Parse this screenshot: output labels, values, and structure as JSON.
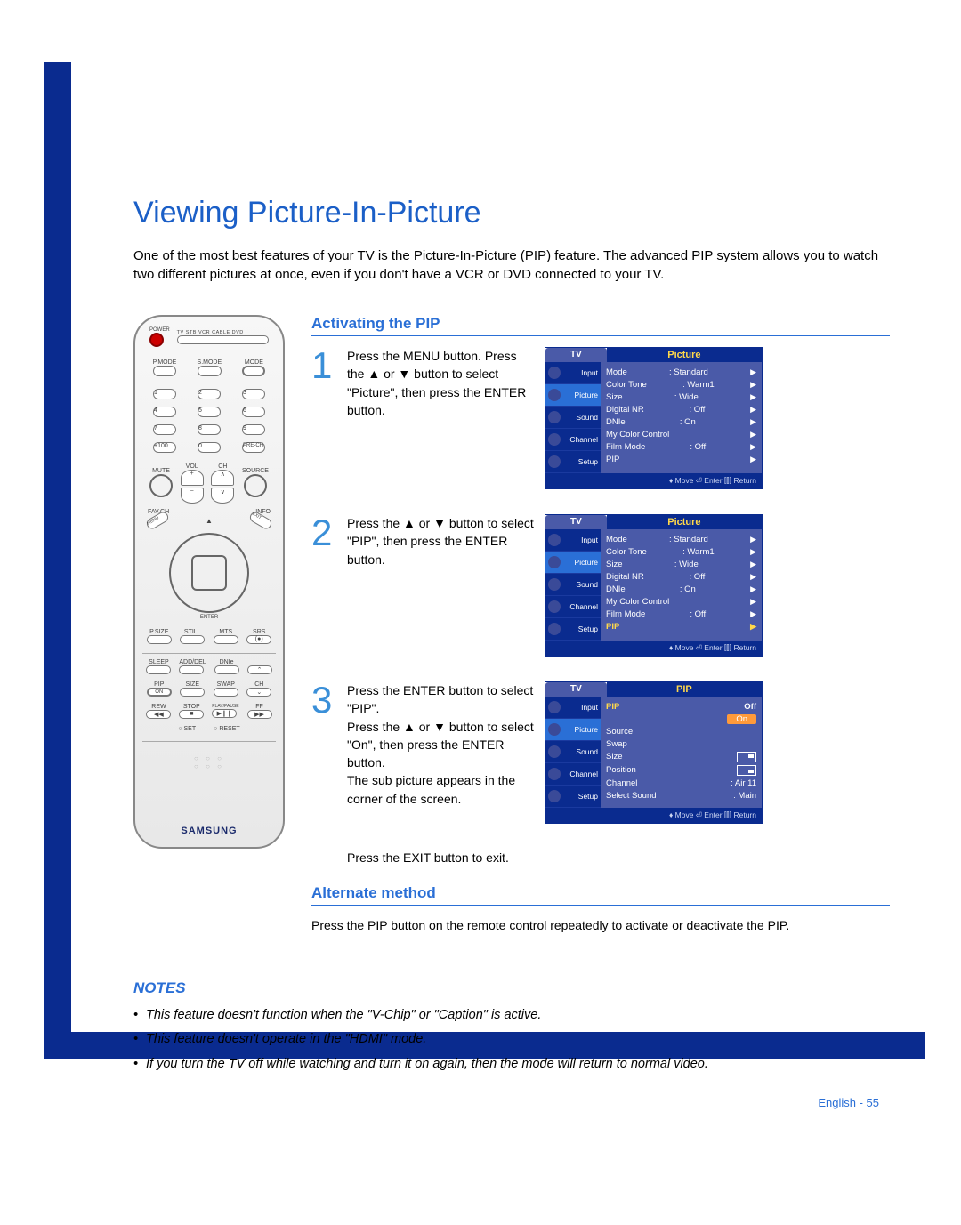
{
  "title": "Viewing Picture-In-Picture",
  "intro": "One of the most best features of your TV is the Picture-In-Picture (PIP) feature. The advanced PIP system allows you to watch two different pictures at once, even if you don't have a VCR or DVD connected to your TV.",
  "section_activating": "Activating the PIP",
  "steps": [
    {
      "num": "1",
      "text": "Press the MENU button. Press the ▲ or ▼ button to select \"Picture\", then press the ENTER button."
    },
    {
      "num": "2",
      "text": "Press the ▲ or ▼ button to select \"PIP\", then press the ENTER button."
    },
    {
      "num": "3",
      "text": "Press the ENTER button to select \"PIP\".\nPress the ▲ or ▼ button to select \"On\", then press the ENTER button.\nThe sub picture appears in the corner of the screen."
    }
  ],
  "exit_line": "Press the EXIT button to exit.",
  "section_alternate": "Alternate method",
  "alternate_text": "Press the PIP button on the remote control repeatedly to activate or deactivate the PIP.",
  "notes_heading": "NOTES",
  "notes": [
    "This feature doesn't function when the \"V-Chip\" or \"Caption\" is active.",
    "This feature doesn't operate in the \"HDMI\" mode.",
    "If you turn the TV off while watching and turn it on again, then the mode will return to normal video."
  ],
  "footer": "English - 55",
  "osd_tv": "TV",
  "osd_sidebar": [
    "Input",
    "Picture",
    "Sound",
    "Channel",
    "Setup"
  ],
  "osd_footers": {
    "picture": "♦ Move   ⏎ Enter   ⫿⫿⫿ Return",
    "pip": "♦ Move   ⏎ Enter   ⫿⫿⫿ Return"
  },
  "osd1": {
    "title": "Picture",
    "active_side": 1,
    "rows": [
      {
        "k": "Mode",
        "v": ": Standard",
        "a": "▶"
      },
      {
        "k": "Color Tone",
        "v": ": Warm1",
        "a": "▶"
      },
      {
        "k": "Size",
        "v": ": Wide",
        "a": "▶"
      },
      {
        "k": "Digital NR",
        "v": ": Off",
        "a": "▶"
      },
      {
        "k": "DNIe",
        "v": ": On",
        "a": "▶"
      },
      {
        "k": "My Color Control",
        "v": "",
        "a": "▶"
      },
      {
        "k": "Film Mode",
        "v": ": Off",
        "a": "▶"
      },
      {
        "k": "PIP",
        "v": "",
        "a": "▶"
      }
    ]
  },
  "osd2": {
    "title": "Picture",
    "active_side": 1,
    "hilite_row": 7,
    "rows": [
      {
        "k": "Mode",
        "v": ": Standard",
        "a": "▶"
      },
      {
        "k": "Color Tone",
        "v": ": Warm1",
        "a": "▶"
      },
      {
        "k": "Size",
        "v": ": Wide",
        "a": "▶"
      },
      {
        "k": "Digital NR",
        "v": ": Off",
        "a": "▶"
      },
      {
        "k": "DNIe",
        "v": ": On",
        "a": "▶"
      },
      {
        "k": "My Color Control",
        "v": "",
        "a": "▶"
      },
      {
        "k": "Film Mode",
        "v": ": Off",
        "a": "▶"
      },
      {
        "k": "PIP",
        "v": "",
        "a": "▶"
      }
    ]
  },
  "osd3": {
    "title": "PIP",
    "active_side": 1,
    "rows": [
      {
        "k": "PIP",
        "v": "Off",
        "hilite_k": true
      },
      {
        "k": "",
        "v": "On",
        "hilite_cell": true
      },
      {
        "k": "Source",
        "v": ""
      },
      {
        "k": "Swap",
        "v": ""
      },
      {
        "k": "Size",
        "v": "",
        "icon": "tr"
      },
      {
        "k": "Position",
        "v": "",
        "icon": "br"
      },
      {
        "k": "Channel",
        "v": ": Air 11"
      },
      {
        "k": "Select Sound",
        "v": ": Main"
      }
    ]
  },
  "remote": {
    "brand": "SAMSUNG",
    "labels": {
      "power": "POWER",
      "select_bar": "TV  STB  VCR  CABLE  DVD",
      "row1": [
        "P.MODE",
        "S.MODE",
        "MODE"
      ],
      "pad_extra": [
        "+100",
        "0",
        "PRE-CH"
      ],
      "vol": "VOL",
      "ch": "CH",
      "mute": "MUTE",
      "source": "SOURCE",
      "menu": "MENU",
      "info": "INFO",
      "favch": "FAV.CH",
      "exit": "EXIT",
      "enter_label": "ENTER",
      "row_a": [
        "P.SIZE",
        "STILL",
        "MTS",
        "SRS"
      ],
      "row_b": [
        "SLEEP",
        "ADD/DEL",
        "DNIe",
        ""
      ],
      "row_c": [
        "PIP",
        "SIZE",
        "SWAP",
        "CH"
      ],
      "row_c2": [
        "ON",
        "",
        "",
        ""
      ],
      "row_d": [
        "REW",
        "STOP",
        "PLAY/PAUSE",
        "FF"
      ],
      "set_reset": [
        "○ SET",
        "○ RESET"
      ]
    }
  },
  "colors": {
    "border": "#0a2b8f",
    "heading_blue": "#2a6fd6",
    "title_blue": "#1b5fc7",
    "step_num": "#3a8fd8",
    "osd_dark": "#0a2b8f",
    "osd_mid": "#4a5aa8",
    "osd_gold": "#ffd84a",
    "osd_orange": "#ff9a3a"
  }
}
